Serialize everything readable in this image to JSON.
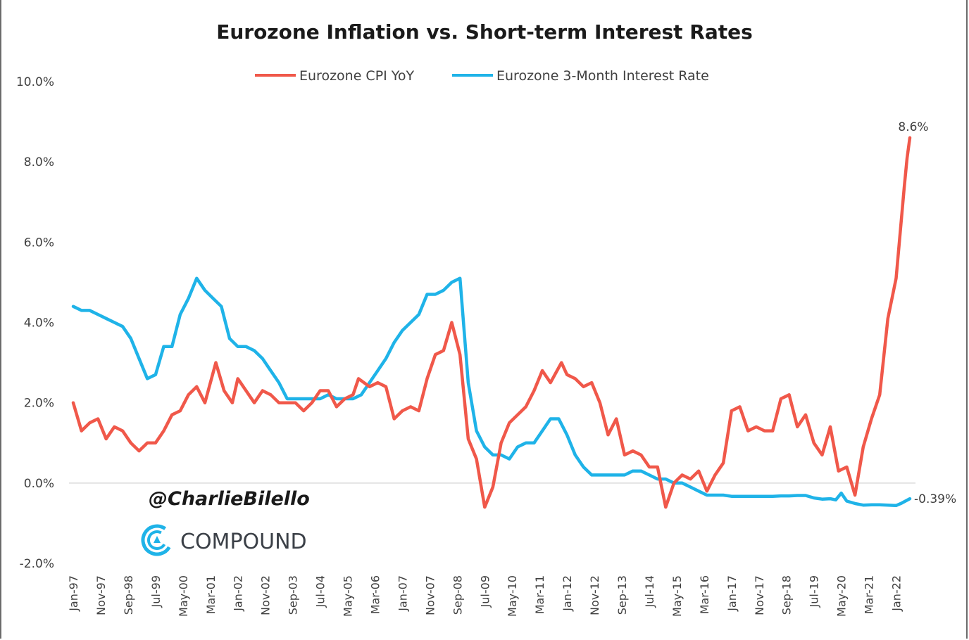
{
  "chart_data": {
    "type": "line",
    "title": "Eurozone Inflation vs. Short-term Interest Rates",
    "xlabel": "",
    "ylabel": "",
    "ylim": [
      -2.0,
      10.0
    ],
    "y_ticks": [
      "10.0%",
      "8.0%",
      "6.0%",
      "4.0%",
      "2.0%",
      "0.0%",
      "-2.0%"
    ],
    "x_tick_labels": [
      "Jan-97",
      "Nov-97",
      "Sep-98",
      "Jul-99",
      "May-00",
      "Mar-01",
      "Jan-02",
      "Nov-02",
      "Sep-03",
      "Jul-04",
      "May-05",
      "Mar-06",
      "Jan-07",
      "Nov-07",
      "Sep-08",
      "Jul-09",
      "May-10",
      "Mar-11",
      "Jan-12",
      "Nov-12",
      "Sep-13",
      "Jul-14",
      "May-15",
      "Mar-16",
      "Jan-17",
      "Nov-17",
      "Sep-18",
      "Jul-19",
      "May-20",
      "Mar-21",
      "Jan-22"
    ],
    "grid": false,
    "legend_position": "top-center",
    "series": [
      {
        "name": "Eurozone CPI YoY",
        "color": "#f0584a",
        "points": [
          [
            "Jan-97",
            2.0
          ],
          [
            "Apr-97",
            1.3
          ],
          [
            "Jul-97",
            1.5
          ],
          [
            "Oct-97",
            1.6
          ],
          [
            "Jan-98",
            1.1
          ],
          [
            "Apr-98",
            1.4
          ],
          [
            "Jul-98",
            1.3
          ],
          [
            "Oct-98",
            1.0
          ],
          [
            "Jan-99",
            0.8
          ],
          [
            "Apr-99",
            1.0
          ],
          [
            "Jul-99",
            1.0
          ],
          [
            "Oct-99",
            1.3
          ],
          [
            "Jan-00",
            1.7
          ],
          [
            "Apr-00",
            1.8
          ],
          [
            "Jul-00",
            2.2
          ],
          [
            "Oct-00",
            2.4
          ],
          [
            "Jan-01",
            2.0
          ],
          [
            "May-01",
            3.0
          ],
          [
            "Aug-01",
            2.3
          ],
          [
            "Nov-01",
            2.0
          ],
          [
            "Jan-02",
            2.6
          ],
          [
            "Apr-02",
            2.3
          ],
          [
            "Jul-02",
            2.0
          ],
          [
            "Oct-02",
            2.3
          ],
          [
            "Jan-03",
            2.2
          ],
          [
            "Apr-03",
            2.0
          ],
          [
            "Jul-03",
            2.0
          ],
          [
            "Oct-03",
            2.0
          ],
          [
            "Jan-04",
            1.8
          ],
          [
            "Apr-04",
            2.0
          ],
          [
            "Jul-04",
            2.3
          ],
          [
            "Oct-04",
            2.3
          ],
          [
            "Jan-05",
            1.9
          ],
          [
            "Apr-05",
            2.1
          ],
          [
            "Jul-05",
            2.2
          ],
          [
            "Sep-05",
            2.6
          ],
          [
            "Jan-06",
            2.4
          ],
          [
            "Apr-06",
            2.5
          ],
          [
            "Jul-06",
            2.4
          ],
          [
            "Oct-06",
            1.6
          ],
          [
            "Jan-07",
            1.8
          ],
          [
            "Apr-07",
            1.9
          ],
          [
            "Jul-07",
            1.8
          ],
          [
            "Oct-07",
            2.6
          ],
          [
            "Jan-08",
            3.2
          ],
          [
            "Apr-08",
            3.3
          ],
          [
            "Jul-08",
            4.0
          ],
          [
            "Oct-08",
            3.2
          ],
          [
            "Jan-09",
            1.1
          ],
          [
            "Apr-09",
            0.6
          ],
          [
            "Jul-09",
            -0.6
          ],
          [
            "Oct-09",
            -0.1
          ],
          [
            "Jan-10",
            1.0
          ],
          [
            "Apr-10",
            1.5
          ],
          [
            "Jul-10",
            1.7
          ],
          [
            "Oct-10",
            1.9
          ],
          [
            "Jan-11",
            2.3
          ],
          [
            "Apr-11",
            2.8
          ],
          [
            "Jul-11",
            2.5
          ],
          [
            "Nov-11",
            3.0
          ],
          [
            "Jan-12",
            2.7
          ],
          [
            "Apr-12",
            2.6
          ],
          [
            "Jul-12",
            2.4
          ],
          [
            "Oct-12",
            2.5
          ],
          [
            "Jan-13",
            2.0
          ],
          [
            "Apr-13",
            1.2
          ],
          [
            "Jul-13",
            1.6
          ],
          [
            "Oct-13",
            0.7
          ],
          [
            "Jan-14",
            0.8
          ],
          [
            "Apr-14",
            0.7
          ],
          [
            "Jul-14",
            0.4
          ],
          [
            "Oct-14",
            0.4
          ],
          [
            "Jan-15",
            -0.6
          ],
          [
            "Apr-15",
            0.0
          ],
          [
            "Jul-15",
            0.2
          ],
          [
            "Oct-15",
            0.1
          ],
          [
            "Jan-16",
            0.3
          ],
          [
            "Apr-16",
            -0.2
          ],
          [
            "Jul-16",
            0.2
          ],
          [
            "Oct-16",
            0.5
          ],
          [
            "Jan-17",
            1.8
          ],
          [
            "Apr-17",
            1.9
          ],
          [
            "Jul-17",
            1.3
          ],
          [
            "Oct-17",
            1.4
          ],
          [
            "Jan-18",
            1.3
          ],
          [
            "Apr-18",
            1.3
          ],
          [
            "Jul-18",
            2.1
          ],
          [
            "Oct-18",
            2.2
          ],
          [
            "Jan-19",
            1.4
          ],
          [
            "Apr-19",
            1.7
          ],
          [
            "Jul-19",
            1.0
          ],
          [
            "Oct-19",
            0.7
          ],
          [
            "Jan-20",
            1.4
          ],
          [
            "Apr-20",
            0.3
          ],
          [
            "Jul-20",
            0.4
          ],
          [
            "Oct-20",
            -0.3
          ],
          [
            "Jan-21",
            0.9
          ],
          [
            "Apr-21",
            1.6
          ],
          [
            "Jul-21",
            2.2
          ],
          [
            "Oct-21",
            4.1
          ],
          [
            "Jan-22",
            5.1
          ],
          [
            "Apr-22",
            7.4
          ],
          [
            "May-22",
            8.1
          ],
          [
            "Jun-22",
            8.6
          ]
        ]
      },
      {
        "name": "Eurozone 3-Month Interest Rate",
        "color": "#1fb3e8",
        "points": [
          [
            "Jan-97",
            4.4
          ],
          [
            "Apr-97",
            4.3
          ],
          [
            "Jul-97",
            4.3
          ],
          [
            "Oct-97",
            4.2
          ],
          [
            "Jan-98",
            4.1
          ],
          [
            "Apr-98",
            4.0
          ],
          [
            "Jul-98",
            3.9
          ],
          [
            "Oct-98",
            3.6
          ],
          [
            "Jan-99",
            3.1
          ],
          [
            "Apr-99",
            2.6
          ],
          [
            "Jul-99",
            2.7
          ],
          [
            "Oct-99",
            3.4
          ],
          [
            "Jan-00",
            3.4
          ],
          [
            "Apr-00",
            4.2
          ],
          [
            "Jul-00",
            4.6
          ],
          [
            "Oct-00",
            5.1
          ],
          [
            "Jan-01",
            4.8
          ],
          [
            "Apr-01",
            4.6
          ],
          [
            "Jul-01",
            4.4
          ],
          [
            "Oct-01",
            3.6
          ],
          [
            "Jan-02",
            3.4
          ],
          [
            "Apr-02",
            3.4
          ],
          [
            "Jul-02",
            3.3
          ],
          [
            "Oct-02",
            3.1
          ],
          [
            "Jan-03",
            2.8
          ],
          [
            "Apr-03",
            2.5
          ],
          [
            "Jul-03",
            2.1
          ],
          [
            "Oct-03",
            2.1
          ],
          [
            "Jan-04",
            2.1
          ],
          [
            "Apr-04",
            2.1
          ],
          [
            "Jul-04",
            2.1
          ],
          [
            "Oct-04",
            2.2
          ],
          [
            "Jan-05",
            2.1
          ],
          [
            "Apr-05",
            2.1
          ],
          [
            "Jul-05",
            2.1
          ],
          [
            "Oct-05",
            2.2
          ],
          [
            "Jan-06",
            2.5
          ],
          [
            "Apr-06",
            2.8
          ],
          [
            "Jul-06",
            3.1
          ],
          [
            "Oct-06",
            3.5
          ],
          [
            "Jan-07",
            3.8
          ],
          [
            "Apr-07",
            4.0
          ],
          [
            "Jul-07",
            4.2
          ],
          [
            "Oct-07",
            4.7
          ],
          [
            "Jan-08",
            4.7
          ],
          [
            "Apr-08",
            4.8
          ],
          [
            "Jul-08",
            5.0
          ],
          [
            "Oct-08",
            5.1
          ],
          [
            "Jan-09",
            2.5
          ],
          [
            "Apr-09",
            1.3
          ],
          [
            "Jul-09",
            0.9
          ],
          [
            "Oct-09",
            0.7
          ],
          [
            "Jan-10",
            0.7
          ],
          [
            "Apr-10",
            0.6
          ],
          [
            "Jul-10",
            0.9
          ],
          [
            "Oct-10",
            1.0
          ],
          [
            "Jan-11",
            1.0
          ],
          [
            "Apr-11",
            1.3
          ],
          [
            "Jul-11",
            1.6
          ],
          [
            "Oct-11",
            1.6
          ],
          [
            "Jan-12",
            1.2
          ],
          [
            "Apr-12",
            0.7
          ],
          [
            "Jul-12",
            0.4
          ],
          [
            "Oct-12",
            0.2
          ],
          [
            "Jan-13",
            0.2
          ],
          [
            "Apr-13",
            0.2
          ],
          [
            "Jul-13",
            0.2
          ],
          [
            "Oct-13",
            0.2
          ],
          [
            "Jan-14",
            0.3
          ],
          [
            "Apr-14",
            0.3
          ],
          [
            "Jul-14",
            0.2
          ],
          [
            "Oct-14",
            0.1
          ],
          [
            "Jan-15",
            0.1
          ],
          [
            "Apr-15",
            0.0
          ],
          [
            "Jul-15",
            0.0
          ],
          [
            "Oct-15",
            -0.1
          ],
          [
            "Jan-16",
            -0.2
          ],
          [
            "Apr-16",
            -0.3
          ],
          [
            "Jul-16",
            -0.3
          ],
          [
            "Oct-16",
            -0.3
          ],
          [
            "Jan-17",
            -0.33
          ],
          [
            "Apr-17",
            -0.33
          ],
          [
            "Jul-17",
            -0.33
          ],
          [
            "Oct-17",
            -0.33
          ],
          [
            "Jan-18",
            -0.33
          ],
          [
            "Apr-18",
            -0.33
          ],
          [
            "Jul-18",
            -0.32
          ],
          [
            "Oct-18",
            -0.32
          ],
          [
            "Jan-19",
            -0.31
          ],
          [
            "Apr-19",
            -0.31
          ],
          [
            "Jul-19",
            -0.37
          ],
          [
            "Oct-19",
            -0.4
          ],
          [
            "Jan-20",
            -0.39
          ],
          [
            "Mar-20",
            -0.42
          ],
          [
            "May-20",
            -0.25
          ],
          [
            "Jul-20",
            -0.45
          ],
          [
            "Oct-20",
            -0.51
          ],
          [
            "Jan-21",
            -0.55
          ],
          [
            "Apr-21",
            -0.54
          ],
          [
            "Jul-21",
            -0.54
          ],
          [
            "Oct-21",
            -0.55
          ],
          [
            "Jan-22",
            -0.56
          ],
          [
            "Mar-22",
            -0.5
          ],
          [
            "Jun-22",
            -0.39
          ]
        ]
      }
    ],
    "annotations": [
      {
        "series": "Eurozone CPI YoY",
        "label": "8.6%"
      },
      {
        "series": "Eurozone 3-Month Interest Rate",
        "label": "-0.39%"
      }
    ]
  },
  "watermark": {
    "handle": "@CharlieBilello",
    "brand": "COMPOUND",
    "brand_color": "#1fb3e8"
  }
}
